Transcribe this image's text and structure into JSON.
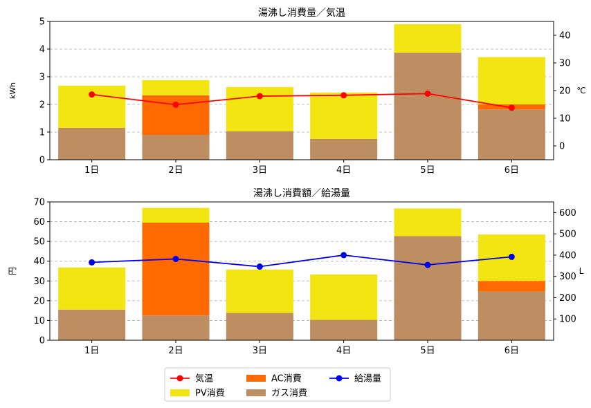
{
  "chart_data": [
    {
      "type": "bar",
      "title": "湯沸し消費量／気温",
      "ylabel": "kWh",
      "y2label": "℃",
      "xlabel": "",
      "ylim": [
        0,
        5
      ],
      "y2lim": [
        -5,
        45
      ],
      "yticks": [
        "0",
        "1",
        "2",
        "3",
        "4",
        "5"
      ],
      "y2ticks": [
        "0",
        "10",
        "20",
        "30",
        "40"
      ],
      "grid": "horizontal-dashed",
      "categories": [
        "1日",
        "2日",
        "3日",
        "4日",
        "5日",
        "6日"
      ],
      "stacked_series": [
        {
          "name": "ガス消費",
          "color": "#bc8e62",
          "values": [
            1.15,
            0.9,
            1.03,
            0.75,
            3.87,
            1.82
          ]
        },
        {
          "name": "AC消費",
          "color": "#ff6a00",
          "values": [
            0.0,
            1.43,
            0.0,
            0.0,
            0.0,
            0.18
          ]
        },
        {
          "name": "PV消費",
          "color": "#f2e511",
          "values": [
            1.53,
            0.55,
            1.6,
            1.68,
            1.03,
            1.71
          ]
        }
      ],
      "line_series": [
        {
          "name": "気温",
          "color": "#ff0000",
          "axis": "right",
          "values": [
            18.6,
            14.9,
            18.0,
            18.3,
            18.9,
            13.8
          ]
        }
      ]
    },
    {
      "type": "bar",
      "title": "湯沸し消費額／給湯量",
      "ylabel": "円",
      "y2label": "L",
      "xlabel": "",
      "ylim": [
        0,
        70
      ],
      "y2lim": [
        0,
        650
      ],
      "yticks": [
        "0",
        "10",
        "20",
        "30",
        "40",
        "50",
        "60",
        "70"
      ],
      "y2ticks": [
        "100",
        "200",
        "300",
        "400",
        "500",
        "600"
      ],
      "grid": "horizontal-dashed",
      "categories": [
        "1日",
        "2日",
        "3日",
        "4日",
        "5日",
        "6日"
      ],
      "stacked_series": [
        {
          "name": "ガス消費",
          "color": "#bc8e62",
          "values": [
            15.5,
            12.5,
            13.8,
            10.3,
            52.7,
            24.7
          ]
        },
        {
          "name": "AC消費",
          "color": "#ff6a00",
          "values": [
            0.0,
            47.0,
            0.0,
            0.0,
            0.0,
            5.3
          ]
        },
        {
          "name": "PV消費",
          "color": "#f2e511",
          "values": [
            21.3,
            7.5,
            22.0,
            23.0,
            14.0,
            23.5
          ]
        }
      ],
      "line_series": [
        {
          "name": "給湯量",
          "color": "#0000ee",
          "axis": "right",
          "values": [
            366,
            382,
            346,
            400,
            354,
            392
          ]
        }
      ]
    }
  ],
  "legend": {
    "entries": [
      {
        "label": "気温",
        "kind": "line",
        "color": "#ff0000"
      },
      {
        "label": "PV消費",
        "kind": "patch",
        "color": "#f2e511"
      },
      {
        "label": "AC消費",
        "kind": "patch",
        "color": "#ff6a00"
      },
      {
        "label": "ガス消費",
        "kind": "patch",
        "color": "#bc8e62"
      },
      {
        "label": "給湯量",
        "kind": "line",
        "color": "#0000ee"
      }
    ]
  }
}
